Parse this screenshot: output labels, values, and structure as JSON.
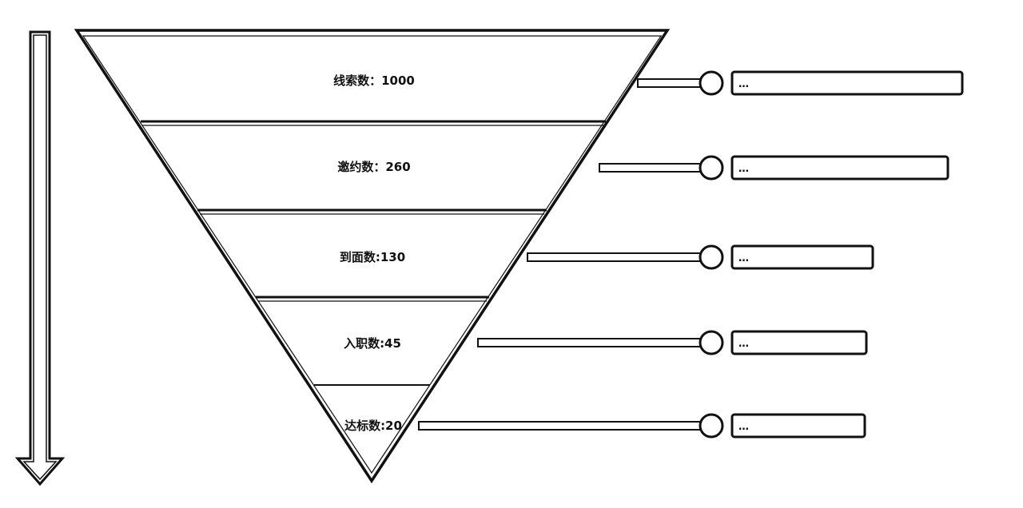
{
  "diagram": {
    "stages": [
      {
        "label": "线索数：1000"
      },
      {
        "label": "邀约数：260"
      },
      {
        "label": "到面数:130"
      },
      {
        "label": "入职数:45"
      },
      {
        "label": "达标数:20"
      }
    ],
    "callouts": [
      {
        "text": "…"
      },
      {
        "text": "…"
      },
      {
        "text": "…"
      },
      {
        "text": "…"
      },
      {
        "text": "…"
      }
    ]
  }
}
